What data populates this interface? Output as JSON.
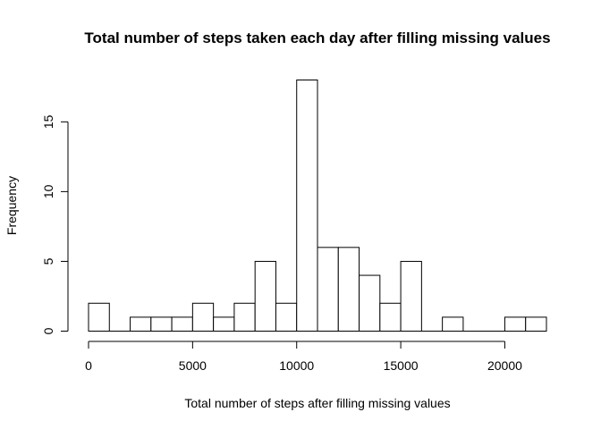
{
  "chart_data": {
    "type": "bar",
    "title": "Total number of steps taken each day after filling missing values",
    "xlabel": "Total number of steps after filling missing values",
    "ylabel": "Frequency",
    "bin_width": 1000,
    "bins": [
      {
        "x_start": 0,
        "x_end": 1000,
        "count": 2
      },
      {
        "x_start": 1000,
        "x_end": 2000,
        "count": 0
      },
      {
        "x_start": 2000,
        "x_end": 3000,
        "count": 1
      },
      {
        "x_start": 3000,
        "x_end": 4000,
        "count": 1
      },
      {
        "x_start": 4000,
        "x_end": 5000,
        "count": 1
      },
      {
        "x_start": 5000,
        "x_end": 6000,
        "count": 2
      },
      {
        "x_start": 6000,
        "x_end": 7000,
        "count": 1
      },
      {
        "x_start": 7000,
        "x_end": 8000,
        "count": 2
      },
      {
        "x_start": 8000,
        "x_end": 9000,
        "count": 5
      },
      {
        "x_start": 9000,
        "x_end": 10000,
        "count": 2
      },
      {
        "x_start": 10000,
        "x_end": 11000,
        "count": 18
      },
      {
        "x_start": 11000,
        "x_end": 12000,
        "count": 6
      },
      {
        "x_start": 12000,
        "x_end": 13000,
        "count": 6
      },
      {
        "x_start": 13000,
        "x_end": 14000,
        "count": 4
      },
      {
        "x_start": 14000,
        "x_end": 15000,
        "count": 2
      },
      {
        "x_start": 15000,
        "x_end": 16000,
        "count": 5
      },
      {
        "x_start": 16000,
        "x_end": 17000,
        "count": 0
      },
      {
        "x_start": 17000,
        "x_end": 18000,
        "count": 1
      },
      {
        "x_start": 18000,
        "x_end": 19000,
        "count": 0
      },
      {
        "x_start": 19000,
        "x_end": 20000,
        "count": 0
      },
      {
        "x_start": 20000,
        "x_end": 21000,
        "count": 1
      },
      {
        "x_start": 21000,
        "x_end": 22000,
        "count": 1
      }
    ],
    "xticks": [
      0,
      5000,
      10000,
      15000,
      20000
    ],
    "xtick_labels": [
      "0",
      "5000",
      "10000",
      "15000",
      "20000"
    ],
    "yticks": [
      0,
      5,
      10,
      15
    ],
    "ytick_labels": [
      "0",
      "5",
      "10",
      "15"
    ],
    "xlim": [
      0,
      22000
    ],
    "ylim": [
      0,
      18
    ],
    "grid": false,
    "colors": {
      "bar_fill": "#ffffff",
      "bar_stroke": "#000000",
      "axis": "#000000"
    }
  }
}
